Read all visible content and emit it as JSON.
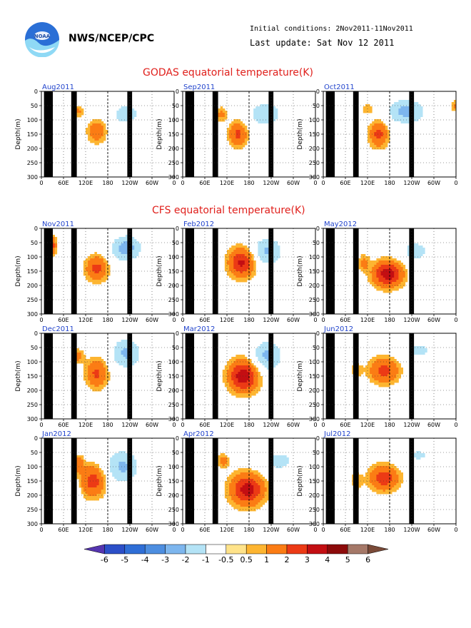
{
  "header": {
    "organization": "NWS/NCEP/CPC",
    "initial_conditions": "Initial conditions: 2Nov2011-11Nov2011",
    "last_update": "Last update: Sat Nov 12 2011",
    "logo_text": "NOAA"
  },
  "sections": {
    "godas_title": "GODAS equatorial temperature(K)",
    "cfs_title": "CFS equatorial temperature(K)"
  },
  "chart_data": {
    "type": "heatmap",
    "panels": [
      {
        "label": "Aug2011",
        "section": "GODAS"
      },
      {
        "label": "Sep2011",
        "section": "GODAS"
      },
      {
        "label": "Oct2011",
        "section": "GODAS"
      },
      {
        "label": "Nov2011",
        "section": "CFS"
      },
      {
        "label": "Feb2012",
        "section": "CFS"
      },
      {
        "label": "May2012",
        "section": "CFS"
      },
      {
        "label": "Dec2011",
        "section": "CFS"
      },
      {
        "label": "Mar2012",
        "section": "CFS"
      },
      {
        "label": "Jun2012",
        "section": "CFS"
      },
      {
        "label": "Jan2012",
        "section": "CFS"
      },
      {
        "label": "Apr2012",
        "section": "CFS"
      },
      {
        "label": "Jul2012",
        "section": "CFS"
      }
    ],
    "x_ticks": [
      "0",
      "60E",
      "120E",
      "180",
      "120W",
      "60W",
      "0"
    ],
    "y_ticks": [
      "0",
      "50",
      "100",
      "150",
      "200",
      "250",
      "300"
    ],
    "ylabel": "Depth(m)",
    "xlim_deg_east": [
      0,
      360
    ],
    "ylim_m": [
      0,
      300
    ],
    "y_inverted": true,
    "grid": "dotted",
    "land_masks_deg_east": [
      [
        7,
        31
      ],
      [
        81,
        96
      ],
      [
        233,
        246
      ]
    ],
    "colorbar": {
      "levels": [
        "-6",
        "-5",
        "-4",
        "-3",
        "-2",
        "-1",
        "-0.5",
        "0.5",
        "1",
        "2",
        "3",
        "4",
        "5",
        "6"
      ],
      "colors": [
        "#5535b0",
        "#2c4fc8",
        "#2f6ed6",
        "#4d8ee0",
        "#7db6ee",
        "#b4e3f6",
        "#ffffff",
        "#ffe38a",
        "#fdb531",
        "#fb7c14",
        "#ec3a15",
        "#c30e12",
        "#8c0a0a",
        "#a57868",
        "#7a4a38"
      ]
    }
  }
}
